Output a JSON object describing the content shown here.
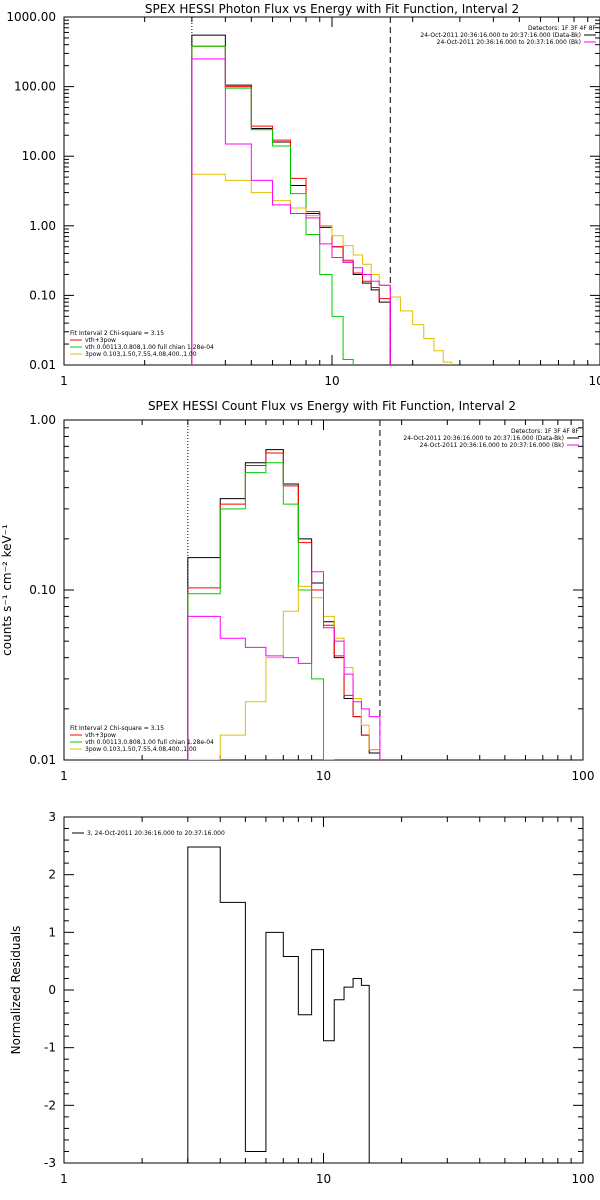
{
  "chart_data": [
    {
      "type": "line",
      "title": "SPEX HESSI Photon Flux vs Energy with Fit Function, Interval 2",
      "xlabel": "",
      "ylabel": "",
      "xscale": "log",
      "yscale": "log",
      "xlim": [
        1,
        100
      ],
      "ylim": [
        0.01,
        1000
      ],
      "x_ticks": [
        1,
        10,
        100
      ],
      "x_tick_labels": [
        "1",
        "10",
        "100"
      ],
      "y_ticks": [
        0.01,
        0.1,
        1,
        10,
        100,
        1000
      ],
      "y_tick_labels": [
        "0.01",
        "0.10",
        "1.00",
        "10.00",
        "100.00",
        "1000.00"
      ],
      "vlines": [
        {
          "x": 3,
          "style": "dotted",
          "color": "#000000"
        },
        {
          "x": 16.5,
          "style": "dashed",
          "color": "#000000"
        }
      ],
      "legend_top_right": [
        {
          "text": "Detectors: 1F 3F 4F 8F",
          "color": "#000000",
          "swatch": false
        },
        {
          "text": "24-Oct-2011 20:36:16.000 to 20:37:16.000 (Data-Bk)",
          "color": "#000000",
          "swatch": true
        },
        {
          "text": "24-Oct-2011 20:36:16.000 to 20:37:16.000 (Bk)",
          "color": "#ff00ff",
          "swatch": true
        }
      ],
      "legend_bottom_left": [
        {
          "text": "Fit Interval 2   Chi-square = 3.15",
          "color": "#000000",
          "swatch": false
        },
        {
          "text": "vth+3pow",
          "color": "#ff0000",
          "swatch": true
        },
        {
          "text": "vth 0.00113,0.808,1.00   full chian 1.28e-04",
          "color": "#00cc00",
          "swatch": true
        },
        {
          "text": "3pow 0.103,1.50,7.55,4.08,400.,1.00",
          "color": "#e0c000",
          "swatch": true
        }
      ],
      "series": [
        {
          "color": "#000000",
          "edges": [
            3,
            4,
            5,
            6,
            7,
            8,
            9,
            10,
            11,
            12,
            13,
            14,
            15,
            16.5
          ],
          "values": [
            550,
            105,
            25,
            16,
            3.8,
            1.5,
            0.95,
            0.5,
            0.3,
            0.2,
            0.15,
            0.12,
            0.08
          ]
        },
        {
          "color": "#ff0000",
          "edges": [
            3,
            4,
            5,
            6,
            7,
            8,
            9,
            10,
            11,
            12,
            13,
            14,
            15,
            16.5
          ],
          "values": [
            380,
            100,
            27,
            17,
            4.8,
            1.6,
            1.0,
            0.5,
            0.32,
            0.21,
            0.16,
            0.13,
            0.09
          ]
        },
        {
          "color": "#00cc00",
          "edges": [
            3,
            4,
            5,
            6,
            7,
            8,
            9,
            10,
            11,
            12
          ],
          "values": [
            380,
            95,
            24,
            14,
            2.9,
            0.75,
            0.2,
            0.05,
            0.012
          ]
        },
        {
          "color": "#e0c000",
          "edges": [
            3,
            4,
            5,
            6,
            7,
            8,
            9,
            10,
            11,
            12,
            13,
            14,
            15,
            16.5,
            18,
            20,
            22,
            24,
            26,
            28
          ],
          "values": [
            5.5,
            4.5,
            3.0,
            2.3,
            1.8,
            1.4,
            1.0,
            0.72,
            0.52,
            0.38,
            0.28,
            0.2,
            0.14,
            0.095,
            0.06,
            0.038,
            0.024,
            0.016,
            0.011
          ]
        },
        {
          "color": "#ff00ff",
          "edges": [
            3,
            4,
            5,
            6,
            7,
            8,
            9,
            10,
            11,
            12,
            13,
            14,
            15,
            16.5
          ],
          "values": [
            250,
            15,
            4.5,
            2.0,
            1.5,
            1.3,
            0.55,
            0.35,
            0.3,
            0.25,
            0.2,
            0.16,
            0.14
          ]
        }
      ]
    },
    {
      "type": "line",
      "title": "SPEX HESSI Count Flux vs Energy with Fit Function, Interval 2",
      "xlabel": "",
      "ylabel": "counts s⁻¹ cm⁻² keV⁻¹",
      "xscale": "log",
      "yscale": "log",
      "xlim": [
        1,
        100
      ],
      "ylim": [
        0.01,
        1
      ],
      "x_ticks": [
        1,
        10,
        100
      ],
      "x_tick_labels": [
        "1",
        "10",
        "100"
      ],
      "y_ticks": [
        0.01,
        0.1,
        1
      ],
      "y_tick_labels": [
        "0.01",
        "0.10",
        "1.00"
      ],
      "vlines": [
        {
          "x": 3,
          "style": "dotted",
          "color": "#000000"
        },
        {
          "x": 16.5,
          "style": "dashed",
          "color": "#000000"
        }
      ],
      "legend_top_right": [
        {
          "text": "Detectors: 1F 3F 4F 8F",
          "color": "#000000",
          "swatch": false
        },
        {
          "text": "24-Oct-2011 20:36:16.000 to 20:37:16.000 (Data-Bk)",
          "color": "#000000",
          "swatch": true
        },
        {
          "text": "24-Oct-2011 20:36:16.000 to 20:37:16.000 (Bk)",
          "color": "#ff00ff",
          "swatch": true
        }
      ],
      "legend_bottom_left": [
        {
          "text": "Fit Interval 2   Chi-square = 3.15",
          "color": "#000000",
          "swatch": false
        },
        {
          "text": "vth+3pow",
          "color": "#ff0000",
          "swatch": true
        },
        {
          "text": "vth 0.00113,0.808,1.00   full chian 1.28e-04",
          "color": "#00cc00",
          "swatch": true
        },
        {
          "text": "3pow 0.103,1.50,7.55,4.08,400.,1.00",
          "color": "#e0c000",
          "swatch": true
        }
      ],
      "series": [
        {
          "color": "#000000",
          "edges": [
            3,
            4,
            5,
            6,
            7,
            8,
            9,
            10,
            11,
            12,
            13,
            14,
            15,
            16.5
          ],
          "values": [
            0.155,
            0.345,
            0.56,
            0.67,
            0.42,
            0.2,
            0.11,
            0.065,
            0.04,
            0.023,
            0.018,
            0.014,
            0.011
          ]
        },
        {
          "color": "#ff0000",
          "edges": [
            3,
            4,
            5,
            6,
            7,
            8,
            9,
            10,
            11,
            12,
            13,
            14,
            15,
            16.5
          ],
          "values": [
            0.103,
            0.32,
            0.54,
            0.64,
            0.41,
            0.19,
            0.1,
            0.062,
            0.041,
            0.024,
            0.018,
            0.014,
            0.0115
          ]
        },
        {
          "color": "#00cc00",
          "edges": [
            3,
            4,
            5,
            6,
            7,
            8,
            9,
            10,
            11
          ],
          "values": [
            0.095,
            0.3,
            0.49,
            0.56,
            0.32,
            0.1,
            0.03,
            0.006
          ]
        },
        {
          "color": "#e0c000",
          "edges": [
            3,
            4,
            5,
            6,
            7,
            8,
            9,
            10,
            11,
            12,
            13,
            14,
            15,
            16.5
          ],
          "values": [
            0.005,
            0.014,
            0.022,
            0.04,
            0.075,
            0.105,
            0.09,
            0.07,
            0.052,
            0.035,
            0.023,
            0.016,
            0.0115
          ]
        },
        {
          "color": "#ff00ff",
          "edges": [
            3,
            4,
            5,
            6,
            7,
            8,
            9,
            10,
            11,
            12,
            13,
            14,
            15,
            16.5
          ],
          "values": [
            0.07,
            0.052,
            0.046,
            0.041,
            0.04,
            0.037,
            0.128,
            0.06,
            0.05,
            0.032,
            0.022,
            0.02,
            0.018
          ]
        }
      ]
    },
    {
      "type": "line",
      "title": "",
      "xlabel": "",
      "ylabel": "Normalized Residuals",
      "xscale": "log",
      "yscale": "linear",
      "xlim": [
        1,
        100
      ],
      "ylim": [
        -3,
        3
      ],
      "x_ticks": [
        1,
        10,
        100
      ],
      "x_tick_labels": [
        "1",
        "10",
        "100"
      ],
      "y_ticks": [
        -3,
        -2,
        -1,
        0,
        1,
        2,
        3
      ],
      "y_tick_labels": [
        "-3",
        "-2",
        "-1",
        "0",
        "1",
        "2",
        "3"
      ],
      "vlines": [],
      "legend_top_left": [
        {
          "text": "3, 24-Oct-2011 20:36:16.000 to 20:37:16.000",
          "color": "#000000",
          "swatch": true
        }
      ],
      "series": [
        {
          "color": "#000000",
          "edges": [
            3,
            4,
            5,
            6,
            7,
            8,
            9,
            10,
            11,
            12,
            13,
            14,
            15,
            16.5
          ],
          "values": [
            2.48,
            1.52,
            -2.8,
            1.0,
            0.58,
            -0.43,
            0.7,
            -0.88,
            -0.17,
            0.05,
            0.2,
            0.08,
            -3.1
          ]
        }
      ]
    }
  ]
}
